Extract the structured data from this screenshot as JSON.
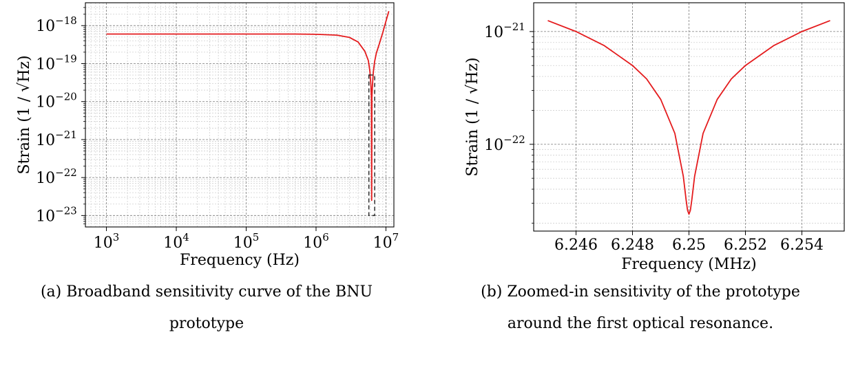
{
  "chart_data": [
    {
      "id": "left",
      "type": "line",
      "xscale": "log",
      "yscale": "log",
      "xlabel": "Frequency (Hz)",
      "ylabel": "Strain (1 / √Hz)",
      "xlim": [
        500,
        13000000
      ],
      "ylim": [
        5e-24,
        4e-18
      ],
      "grid": true,
      "x_ticks": [
        {
          "value": 1000,
          "base": "10",
          "exp": "3"
        },
        {
          "value": 10000,
          "base": "10",
          "exp": "4"
        },
        {
          "value": 100000,
          "base": "10",
          "exp": "5"
        },
        {
          "value": 1000000,
          "base": "10",
          "exp": "6"
        },
        {
          "value": 10000000,
          "base": "10",
          "exp": "7"
        }
      ],
      "y_ticks": [
        {
          "value": 1e-18,
          "base": "10",
          "exp": "−18"
        },
        {
          "value": 1e-19,
          "base": "10",
          "exp": "−19"
        },
        {
          "value": 1e-20,
          "base": "10",
          "exp": "−20"
        },
        {
          "value": 1e-21,
          "base": "10",
          "exp": "−21"
        },
        {
          "value": 1e-22,
          "base": "10",
          "exp": "−22"
        },
        {
          "value": 1e-23,
          "base": "10",
          "exp": "−23"
        }
      ],
      "series": [
        {
          "color": "#e41a1c",
          "x": [
            1000,
            10000,
            100000,
            500000,
            1000000,
            2000000,
            3000000,
            4000000,
            5000000,
            5600000,
            5900000,
            6100000,
            6200000,
            6250000,
            6300000,
            6400000,
            6600000,
            6900000,
            7300000,
            8000000,
            9000000,
            10000000,
            11000000
          ],
          "y": [
            6e-19,
            6e-19,
            6e-19,
            6e-19,
            5.9e-19,
            5.6e-19,
            4.9e-19,
            3.7e-19,
            2.1e-19,
            1.2e-19,
            6.2e-20,
            2.6e-20,
            1.3e-20,
            2.5e-23,
            1.3e-20,
            2.5e-20,
            6e-20,
            1.15e-19,
            1.9e-19,
            3.2e-19,
            6.5e-19,
            1.3e-18,
            2.4e-18
          ]
        }
      ],
      "annotation_box": {
        "x": [
          5700000,
          6900000
        ],
        "y": [
          1e-23,
          5e-20
        ],
        "style": "dashed"
      }
    },
    {
      "id": "right",
      "type": "line",
      "xscale": "linear",
      "yscale": "log",
      "xlabel": "Frequency (MHz)",
      "ylabel": "Strain (1 / √Hz)",
      "xlim": [
        6.2445,
        6.2555
      ],
      "ylim": [
        1.7e-23,
        1.8e-21
      ],
      "grid": true,
      "x_ticks": [
        {
          "value": 6.246,
          "label": "6.246"
        },
        {
          "value": 6.248,
          "label": "6.248"
        },
        {
          "value": 6.25,
          "label": "6.25"
        },
        {
          "value": 6.252,
          "label": "6.252"
        },
        {
          "value": 6.254,
          "label": "6.254"
        }
      ],
      "y_ticks": [
        {
          "value": 1e-21,
          "base": "10",
          "exp": "−21"
        },
        {
          "value": 1e-22,
          "base": "10",
          "exp": "−22"
        }
      ],
      "series": [
        {
          "color": "#e41a1c",
          "x": [
            6.245,
            6.246,
            6.247,
            6.248,
            6.2485,
            6.249,
            6.2495,
            6.2498,
            6.2499,
            6.24995,
            6.25,
            6.25005,
            6.2501,
            6.2502,
            6.2505,
            6.251,
            6.2515,
            6.252,
            6.253,
            6.254,
            6.255
          ],
          "y": [
            1.25e-21,
            1e-21,
            7.5e-22,
            5e-22,
            3.8e-22,
            2.5e-22,
            1.25e-22,
            5.2e-23,
            3.2e-23,
            2.6e-23,
            2.4e-23,
            2.6e-23,
            3.2e-23,
            5.2e-23,
            1.25e-22,
            2.5e-22,
            3.8e-22,
            5e-22,
            7.5e-22,
            1e-21,
            1.25e-21
          ]
        }
      ]
    }
  ],
  "captions": {
    "left": [
      "(a) Broadband sensitivity curve of the BNU",
      "prototype"
    ],
    "right": [
      "(b) Zoomed-in sensitivity of the prototype",
      "around the first optical resonance."
    ]
  }
}
